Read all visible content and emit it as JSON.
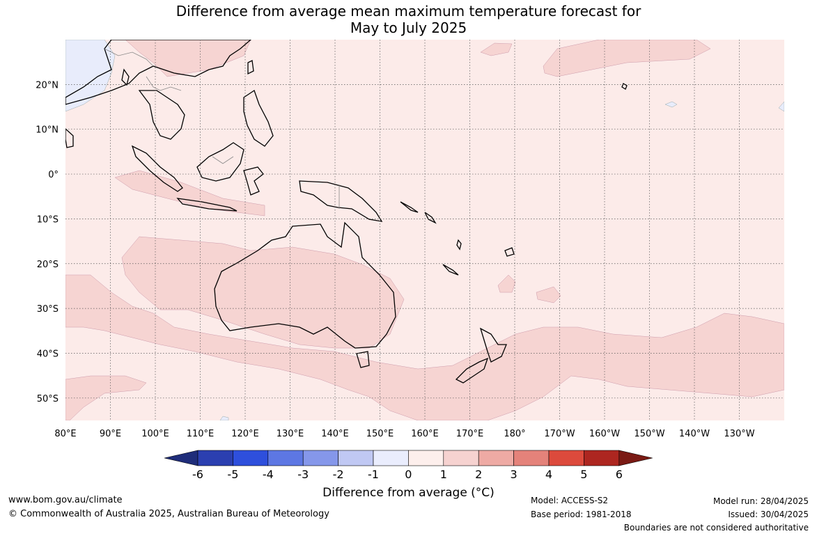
{
  "title": {
    "line1": "Difference from average mean maximum temperature forecast for",
    "line2": "May to July 2025"
  },
  "axes": {
    "lon_labels": [
      "80°E",
      "90°E",
      "100°E",
      "110°E",
      "120°E",
      "130°E",
      "140°E",
      "150°E",
      "160°E",
      "170°E",
      "180°",
      "170°W",
      "160°W",
      "150°W",
      "140°W",
      "130°W"
    ],
    "lat_labels": [
      "20°N",
      "10°N",
      "0°",
      "10°S",
      "20°S",
      "30°S",
      "40°S",
      "50°S"
    ],
    "lon_range": [
      80,
      240
    ],
    "lat_range": [
      -55,
      30
    ]
  },
  "colorbar": {
    "ticks": [
      "-6",
      "-5",
      "-4",
      "-3",
      "-2",
      "-1",
      "0",
      "1",
      "2",
      "3",
      "4",
      "5",
      "6"
    ],
    "colors": [
      "#1f2d7a",
      "#2b3fb0",
      "#2e4fdc",
      "#5d77e3",
      "#8597ea",
      "#c0c8f3",
      "#eaedfd",
      "#fdefec",
      "#f6d2d0",
      "#eeaaa4",
      "#e4827a",
      "#dc4a3c",
      "#ad2620",
      "#7a1a14"
    ],
    "label": "Difference from average (°C)"
  },
  "colors": {
    "land_base": "#fcebe9",
    "warm_1_2": "#f6d4d2",
    "cool_-1_0": "#e8ecfb",
    "grid": "#555555"
  },
  "footer": {
    "website": "www.bom.gov.au/climate",
    "copyright": "© Commonwealth of Australia 2025, Australian Bureau of Meteorology",
    "model": "Model: ACCESS-S2",
    "base_period": "Base period: 1981-2018",
    "model_run": "Model run: 28/04/2025",
    "issued": "Issued: 30/04/2025",
    "disclaimer": "Boundaries are not considered authoritative"
  }
}
